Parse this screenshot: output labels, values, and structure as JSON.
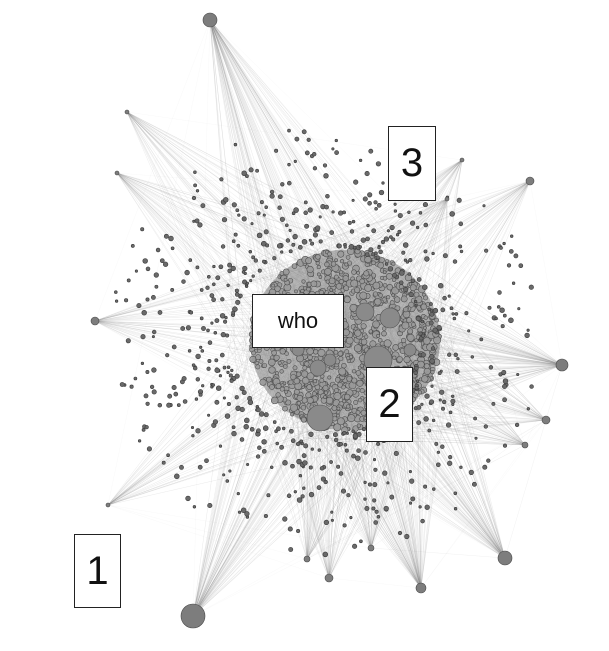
{
  "labels": {
    "one": "1",
    "two": "2",
    "three": "3",
    "who": "who"
  },
  "colors": {
    "background": "#ffffff",
    "node": "#8a8a8a",
    "node_stroke": "#555555",
    "edge": "#8c8c8c"
  }
}
